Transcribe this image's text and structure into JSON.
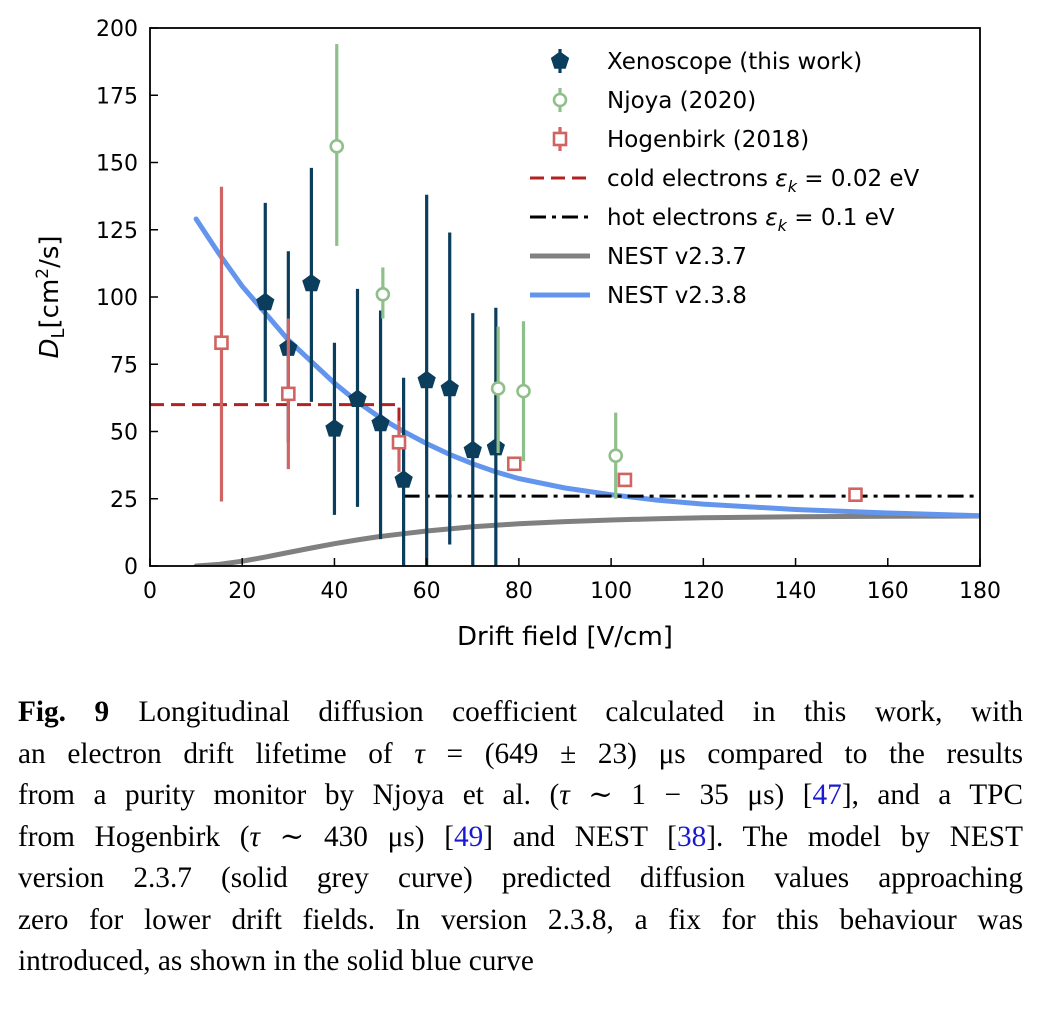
{
  "chart_data": {
    "type": "scatter",
    "xlabel": "Drift field [V/cm]",
    "ylabel_main": "D",
    "ylabel_sub": "L",
    "ylabel_unit_pre": "[cm",
    "ylabel_unit_sup": "2",
    "ylabel_unit_post": "/s]",
    "xlim": [
      0,
      180
    ],
    "ylim": [
      0,
      200
    ],
    "xticks": [
      "0",
      "20",
      "40",
      "60",
      "80",
      "100",
      "120",
      "140",
      "160",
      "180"
    ],
    "yticks": [
      "0",
      "25",
      "50",
      "75",
      "100",
      "125",
      "150",
      "175",
      "200"
    ],
    "grid": false,
    "legend_position": "top-right",
    "series": [
      {
        "name": "Xenoscope (this work)",
        "marker": "pentagon",
        "color": "#0b3d5c",
        "points": [
          {
            "x": 25,
            "y": 98,
            "lo": 61,
            "hi": 135
          },
          {
            "x": 30,
            "y": 81,
            "lo": 46,
            "hi": 117
          },
          {
            "x": 35,
            "y": 105,
            "lo": 61,
            "hi": 148
          },
          {
            "x": 40,
            "y": 51,
            "lo": 19,
            "hi": 83
          },
          {
            "x": 45,
            "y": 62,
            "lo": 22,
            "hi": 103
          },
          {
            "x": 50,
            "y": 53,
            "lo": 10,
            "hi": 95
          },
          {
            "x": 55,
            "y": 32,
            "lo": 0,
            "hi": 70
          },
          {
            "x": 60,
            "y": 69,
            "lo": 0,
            "hi": 138
          },
          {
            "x": 65,
            "y": 66,
            "lo": 8,
            "hi": 124
          },
          {
            "x": 70,
            "y": 43,
            "lo": 0,
            "hi": 94
          },
          {
            "x": 75,
            "y": 44,
            "lo": 0,
            "hi": 96
          }
        ]
      },
      {
        "name": "Njoya (2020)",
        "marker": "circle",
        "color": "#8fbf8a",
        "points": [
          {
            "x": 40.5,
            "y": 156,
            "lo": 119,
            "hi": 194
          },
          {
            "x": 50.5,
            "y": 101,
            "lo": 92,
            "hi": 111
          },
          {
            "x": 75.5,
            "y": 66,
            "lo": 42,
            "hi": 89
          },
          {
            "x": 81,
            "y": 65,
            "lo": 39,
            "hi": 91
          },
          {
            "x": 101,
            "y": 41,
            "lo": 25,
            "hi": 57
          }
        ]
      },
      {
        "name": "Hogenbirk (2018)",
        "marker": "square",
        "color": "#d06462",
        "points": [
          {
            "x": 15.5,
            "y": 83,
            "lo": 24,
            "hi": 141
          },
          {
            "x": 30,
            "y": 64,
            "lo": 36,
            "hi": 92
          },
          {
            "x": 54,
            "y": 46,
            "lo": 35,
            "hi": 54
          },
          {
            "x": 79,
            "y": 38,
            "lo": 38,
            "hi": 38
          },
          {
            "x": 103,
            "y": 32,
            "lo": 32,
            "hi": 32
          },
          {
            "x": 153,
            "y": 26.5,
            "lo": 26.5,
            "hi": 26.5
          }
        ]
      }
    ],
    "lines": [
      {
        "name_pre": "cold electrons ",
        "name_sym": "ε",
        "name_sub": "k",
        "name_post": " = 0.02 eV",
        "style": "dashed",
        "color": "#b22222",
        "points": [
          [
            0,
            60
          ],
          [
            54,
            60
          ],
          [
            54,
            46
          ]
        ]
      },
      {
        "name_pre": "hot electrons ",
        "name_sym": "ε",
        "name_sub": "k",
        "name_post": " = 0.1 eV",
        "style": "dashdot",
        "color": "#000000",
        "points": [
          [
            55,
            26
          ],
          [
            180,
            26
          ]
        ]
      },
      {
        "name": "NEST v2.3.7",
        "style": "solid",
        "color": "#808080",
        "points": [
          [
            10,
            0
          ],
          [
            15,
            0.6
          ],
          [
            20,
            1.8
          ],
          [
            25,
            3.3
          ],
          [
            30,
            5
          ],
          [
            35,
            6.7
          ],
          [
            40,
            8.3
          ],
          [
            45,
            9.7
          ],
          [
            50,
            11
          ],
          [
            55,
            12
          ],
          [
            60,
            13
          ],
          [
            70,
            14.6
          ],
          [
            80,
            15.7
          ],
          [
            90,
            16.5
          ],
          [
            100,
            17.1
          ],
          [
            110,
            17.6
          ],
          [
            120,
            17.9
          ],
          [
            140,
            18.3
          ],
          [
            160,
            18.5
          ],
          [
            180,
            18.6
          ]
        ]
      },
      {
        "name": "NEST v2.3.8",
        "style": "solid",
        "color": "#6495ed",
        "points": [
          [
            10,
            129
          ],
          [
            15,
            116
          ],
          [
            20,
            104
          ],
          [
            25,
            94
          ],
          [
            30,
            84
          ],
          [
            35,
            76
          ],
          [
            40,
            68
          ],
          [
            45,
            61
          ],
          [
            50,
            55
          ],
          [
            55,
            50
          ],
          [
            60,
            45.5
          ],
          [
            65,
            41.5
          ],
          [
            70,
            38
          ],
          [
            75,
            35
          ],
          [
            80,
            32.5
          ],
          [
            90,
            29
          ],
          [
            100,
            26.5
          ],
          [
            110,
            24.5
          ],
          [
            120,
            23
          ],
          [
            140,
            21
          ],
          [
            160,
            19.7
          ],
          [
            180,
            18.7
          ]
        ]
      }
    ]
  },
  "caption": {
    "label": "Fig. 9",
    "lines": [
      [
        "Longitudinal diffusion coefficient calculated in this work, with"
      ],
      [
        "an electron drift lifetime of ",
        "τ",
        " = (649 ± 23) μs compared to the results"
      ],
      [
        "from a purity monitor by Njoya et al. (",
        "τ",
        " ∼ 1 − 35 μs) [",
        "47",
        "], and a TPC"
      ],
      [
        "from Hogenbirk (",
        "τ",
        " ∼ 430 μs) [",
        "49",
        "] and NEST [",
        "38",
        "]. The model by NEST"
      ],
      [
        "version 2.3.7 (solid grey curve) predicted diffusion values approaching"
      ],
      [
        "zero for lower drift fields. In version 2.3.8, a fix for this behaviour was"
      ],
      [
        "introduced, as shown in the solid blue curve"
      ]
    ]
  }
}
